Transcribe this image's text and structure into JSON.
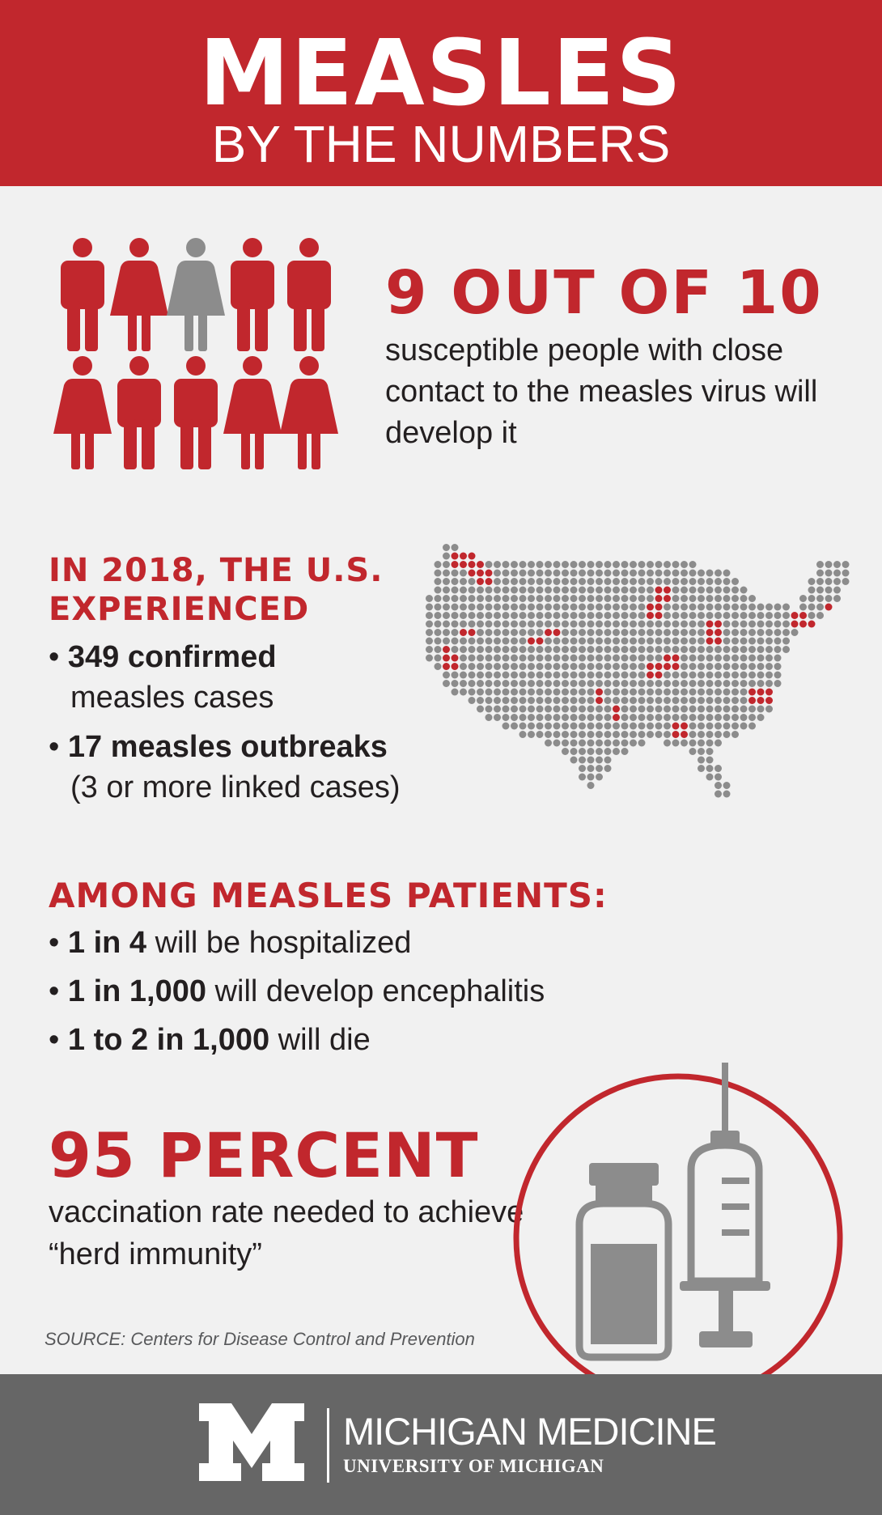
{
  "header": {
    "title": "MEASLES",
    "subtitle": "BY THE NUMBERS"
  },
  "section_contagion": {
    "people_icons": {
      "total": 10,
      "highlighted": 9,
      "row1": [
        "man",
        "woman",
        "woman",
        "man",
        "man"
      ],
      "row2": [
        "woman",
        "man",
        "man",
        "woman",
        "woman"
      ],
      "gray_index": 2
    },
    "stat": "9 OUT OF 10",
    "description": "susceptible people with close contact to the measles virus will develop it"
  },
  "section_2018": {
    "heading_line1": "IN 2018, THE U.S.",
    "heading_line2": "EXPERIENCED",
    "bullet1_bold": "349 confirmed",
    "bullet1_cont": "measles cases",
    "bullet2_bold": "17 measles outbreaks",
    "bullet2_cont": "(3 or more linked cases)",
    "map_icon": "us-dot-map-icon"
  },
  "section_patients": {
    "heading": "AMONG MEASLES PATIENTS:",
    "bullets": [
      {
        "bold": "1 in 4",
        "text": " will be hospitalized"
      },
      {
        "bold": "1 in 1,000",
        "text": " will develop encephalitis"
      },
      {
        "bold": "1 to 2 in 1,000",
        "text": " will die"
      }
    ]
  },
  "section_vaccination": {
    "stat": "95 PERCENT",
    "description": "vaccination rate needed to achieve “herd immunity”",
    "icon": "vaccine-vial-syringe-icon"
  },
  "source": "SOURCE: Centers for Disease Control and Prevention",
  "footer": {
    "logo_letter": "M",
    "org_name": "MICHIGAN MEDICINE",
    "org_sub": "UNIVERSITY OF MICHIGAN"
  },
  "colors": {
    "red": "#c1272d",
    "gray": "#8c8c8c",
    "footer_gray": "#666666",
    "background": "#f1f1f1"
  }
}
